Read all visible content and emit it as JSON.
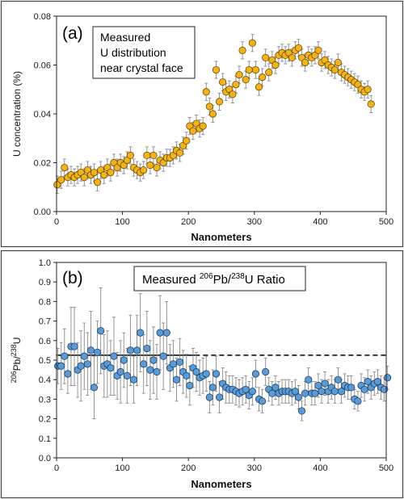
{
  "chart_data": [
    {
      "type": "scatter",
      "panel_label": "(a)",
      "annotation_lines": [
        "Measured",
        "U distribution",
        "near crystal face"
      ],
      "xlabel": "Nanometers",
      "ylabel": "U concentration (%)",
      "xlim": [
        0,
        500
      ],
      "ylim": [
        0,
        0.08
      ],
      "x_ticks": [
        "0",
        "100",
        "200",
        "300",
        "400",
        "500"
      ],
      "y_ticks": [
        "0.00",
        "0.02",
        "0.04",
        "0.06",
        "0.08"
      ],
      "grid": false,
      "marker_color": "#f2b21b",
      "marker_edge": "#6b4c00",
      "series": [
        {
          "x": [
            1,
            7,
            12,
            17,
            22,
            27,
            32,
            37,
            42,
            47,
            52,
            57,
            62,
            67,
            72,
            77,
            82,
            87,
            92,
            97,
            102,
            107,
            112,
            117,
            122,
            127,
            132,
            137,
            142,
            147,
            152,
            157,
            162,
            167,
            172,
            177,
            182,
            187,
            192,
            197,
            202,
            207,
            212,
            217,
            222,
            227,
            232,
            237,
            242,
            247,
            252,
            257,
            262,
            267,
            272,
            277,
            282,
            287,
            292,
            297,
            302,
            307,
            312,
            317,
            322,
            327,
            332,
            337,
            342,
            347,
            352,
            357,
            362,
            367,
            372,
            377,
            382,
            387,
            392,
            397,
            402,
            407,
            412,
            417,
            422,
            427,
            432,
            437,
            442,
            447,
            452,
            457,
            462,
            467,
            472,
            477
          ],
          "y": [
            0.011,
            0.013,
            0.018,
            0.014,
            0.015,
            0.014,
            0.015,
            0.016,
            0.014,
            0.017,
            0.015,
            0.016,
            0.012,
            0.017,
            0.015,
            0.018,
            0.016,
            0.02,
            0.018,
            0.02,
            0.019,
            0.021,
            0.023,
            0.018,
            0.017,
            0.016,
            0.017,
            0.023,
            0.019,
            0.023,
            0.018,
            0.021,
            0.02,
            0.022,
            0.022,
            0.023,
            0.025,
            0.024,
            0.027,
            0.029,
            0.035,
            0.033,
            0.036,
            0.034,
            0.035,
            0.049,
            0.043,
            0.04,
            0.058,
            0.045,
            0.053,
            0.049,
            0.05,
            0.048,
            0.052,
            0.056,
            0.066,
            0.054,
            0.058,
            0.069,
            0.058,
            0.051,
            0.055,
            0.063,
            0.057,
            0.062,
            0.06,
            0.064,
            0.065,
            0.064,
            0.065,
            0.063,
            0.066,
            0.067,
            0.063,
            0.061,
            0.064,
            0.063,
            0.064,
            0.066,
            0.061,
            0.062,
            0.06,
            0.059,
            0.058,
            0.061,
            0.057,
            0.056,
            0.055,
            0.054,
            0.053,
            0.052,
            0.05,
            0.049,
            0.05,
            0.044
          ],
          "error": 0.0035
        }
      ]
    },
    {
      "type": "scatter",
      "panel_label": "(b)",
      "title_prefix": "Measured ",
      "title_sup1": "206",
      "title_mid": "Pb/",
      "title_sup2": "238",
      "title_suffix": "U Ratio",
      "xlabel": "Nanometers",
      "ylabel_sup1": "206",
      "ylabel_mid": "Pb/",
      "ylabel_sup2": "238",
      "ylabel_suffix": "U",
      "xlim": [
        0,
        500
      ],
      "ylim": [
        0,
        1.0
      ],
      "x_ticks": [
        "0",
        "100",
        "200",
        "300",
        "400",
        "500"
      ],
      "y_ticks": [
        "0.0",
        "0.1",
        "0.2",
        "0.3",
        "0.4",
        "0.5",
        "0.6",
        "0.7",
        "0.8",
        "0.9",
        "1.0"
      ],
      "grid": false,
      "reference_line": {
        "y": 0.525,
        "solid_until_x": 210,
        "dashed_until_x": 500
      },
      "marker_color": "#5b9bd5",
      "marker_edge": "#1f3f66",
      "series": [
        {
          "x": [
            2,
            7,
            12,
            17,
            22,
            27,
            32,
            37,
            42,
            47,
            52,
            57,
            62,
            67,
            72,
            77,
            82,
            87,
            92,
            97,
            102,
            107,
            112,
            117,
            122,
            127,
            132,
            137,
            142,
            147,
            152,
            157,
            162,
            167,
            172,
            177,
            182,
            187,
            192,
            197,
            202,
            207,
            212,
            217,
            222,
            227,
            232,
            237,
            242,
            247,
            252,
            257,
            262,
            267,
            272,
            277,
            282,
            287,
            292,
            297,
            302,
            307,
            312,
            317,
            322,
            327,
            332,
            337,
            342,
            347,
            352,
            357,
            362,
            367,
            372,
            377,
            382,
            387,
            392,
            397,
            402,
            407,
            412,
            417,
            422,
            427,
            432,
            437,
            442,
            447,
            452,
            457,
            462,
            467,
            472,
            477,
            482,
            487,
            492,
            497,
            502
          ],
          "y": [
            0.47,
            0.47,
            0.52,
            0.43,
            0.57,
            0.57,
            0.45,
            0.47,
            0.52,
            0.48,
            0.55,
            0.36,
            0.54,
            0.65,
            0.47,
            0.48,
            0.46,
            0.52,
            0.42,
            0.44,
            0.5,
            0.42,
            0.55,
            0.4,
            0.55,
            0.64,
            0.48,
            0.56,
            0.45,
            0.5,
            0.44,
            0.64,
            0.52,
            0.64,
            0.46,
            0.48,
            0.4,
            0.49,
            0.44,
            0.42,
            0.37,
            0.46,
            0.44,
            0.41,
            0.42,
            0.43,
            0.31,
            0.36,
            0.43,
            0.31,
            0.38,
            0.36,
            0.35,
            0.35,
            0.34,
            0.33,
            0.34,
            0.35,
            0.32,
            0.34,
            0.43,
            0.3,
            0.29,
            0.44,
            0.35,
            0.33,
            0.36,
            0.33,
            0.34,
            0.34,
            0.34,
            0.33,
            0.34,
            0.31,
            0.24,
            0.33,
            0.4,
            0.33,
            0.33,
            0.37,
            0.34,
            0.38,
            0.34,
            0.36,
            0.34,
            0.4,
            0.34,
            0.37,
            0.36,
            0.36,
            0.3,
            0.29,
            0.37,
            0.35,
            0.39,
            0.36,
            0.38,
            0.39,
            0.36,
            0.35,
            0.41
          ],
          "error": [
            0.09,
            0.12,
            0.14,
            0.1,
            0.2,
            0.2,
            0.14,
            0.18,
            0.17,
            0.16,
            0.2,
            0.16,
            0.16,
            0.22,
            0.16,
            0.17,
            0.14,
            0.2,
            0.12,
            0.16,
            0.14,
            0.14,
            0.18,
            0.12,
            0.18,
            0.2,
            0.15,
            0.19,
            0.15,
            0.17,
            0.14,
            0.19,
            0.17,
            0.16,
            0.12,
            0.12,
            0.11,
            0.12,
            0.11,
            0.11,
            0.1,
            0.1,
            0.1,
            0.09,
            0.09,
            0.09,
            0.08,
            0.09,
            0.09,
            0.08,
            0.08,
            0.08,
            0.07,
            0.07,
            0.07,
            0.07,
            0.07,
            0.07,
            0.07,
            0.07,
            0.07,
            0.06,
            0.06,
            0.07,
            0.06,
            0.06,
            0.06,
            0.06,
            0.06,
            0.06,
            0.06,
            0.06,
            0.06,
            0.06,
            0.05,
            0.06,
            0.06,
            0.06,
            0.06,
            0.06,
            0.06,
            0.06,
            0.06,
            0.06,
            0.06,
            0.06,
            0.06,
            0.06,
            0.06,
            0.06,
            0.05,
            0.05,
            0.06,
            0.06,
            0.06,
            0.06,
            0.06,
            0.06,
            0.06,
            0.06,
            0.06
          ]
        }
      ]
    }
  ]
}
